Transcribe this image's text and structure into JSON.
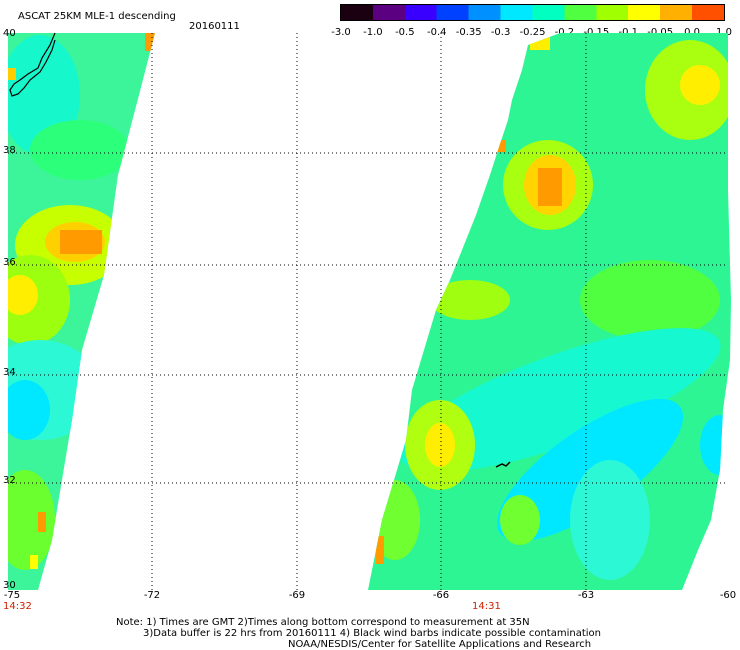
{
  "header": {
    "title": "ASCAT 25KM MLE-1 descending",
    "date": "20160111"
  },
  "colorbar": {
    "labels": [
      "-3.0",
      "-1.0",
      "-0.5",
      "-0.4",
      "-0.35",
      "-0.3",
      "-0.25",
      "-0.2",
      "-0.15",
      "-0.1",
      "-0.05",
      "0.0",
      "1.0"
    ],
    "colors": [
      "#1a0010",
      "#5a0080",
      "#3a00ff",
      "#0040ff",
      "#0090ff",
      "#00e8ff",
      "#00ffc0",
      "#50ff40",
      "#a0ff00",
      "#ffff00",
      "#ffb000",
      "#ff5000"
    ]
  },
  "axes": {
    "lat_labels": [
      "40",
      "38",
      "36",
      "34",
      "32",
      "30"
    ],
    "lon_labels": [
      "-75",
      "-72",
      "-69",
      "-66",
      "-63",
      "-60"
    ]
  },
  "swath_times": {
    "left": "14:32",
    "right": "14:31"
  },
  "notes": {
    "line1": "Note: 1) Times are GMT 2)Times along bottom correspond to measurement at 35N",
    "line2": "3)Data buffer is 22 hrs from 20160111 4) Black wind barbs indicate possible contamination",
    "line3": "NOAA/NESDIS/Center for Satellite Applications and Research"
  }
}
